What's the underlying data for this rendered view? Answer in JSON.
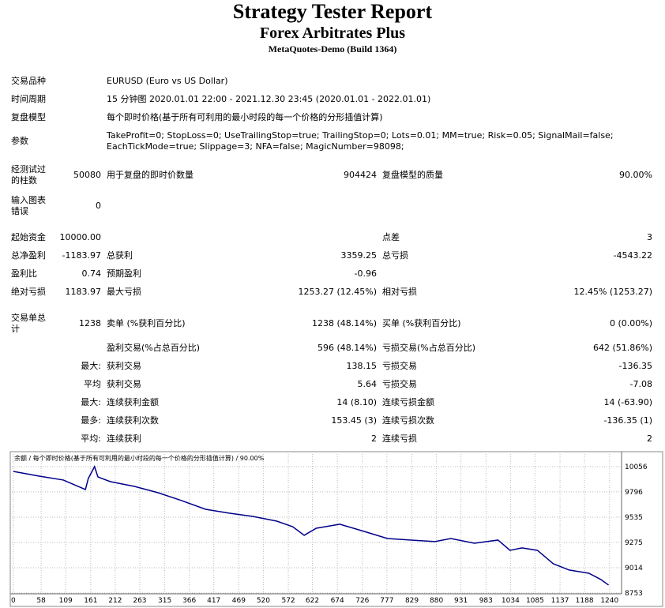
{
  "header": {
    "title": "Strategy Tester Report",
    "subtitle": "Forex Arbitrates Plus",
    "build": "MetaQuotes-Demo (Build 1364)"
  },
  "info": [
    {
      "label": "交易品种",
      "lines": [
        "EURUSD (Euro vs US Dollar)"
      ]
    },
    {
      "label": "时间周期",
      "lines": [
        "15 分钟图 2020.01.01 22:00 - 2021.12.30 23:45 (2020.01.01 - 2022.01.01)"
      ]
    },
    {
      "label": "复盘模型",
      "lines": [
        "每个即时价格(基于所有可利用的最小时段的每一个价格的分形插值计算)"
      ]
    },
    {
      "label": "参数",
      "lines": [
        "TakeProfit=0; StopLoss=0; UseTrailingStop=true; TrailingStop=0; Lots=0.01; MM=true; Risk=0.05; SignalMail=false;",
        "EachTickMode=true; Slippage=3; NFA=false; MagicNumber=98098;"
      ]
    }
  ],
  "stats": [
    [
      "经测试过的柱数",
      "50080",
      "用于复盘的即时价数量",
      "904424",
      "复盘模型的质量",
      "90.00%"
    ],
    [
      "输入图表错误",
      "0",
      null,
      null,
      null,
      null
    ],
    [
      "起始资金",
      "10000.00",
      null,
      null,
      "点差",
      "3"
    ],
    [
      "总净盈利",
      "-1183.97",
      "总获利",
      "3359.25",
      "总亏损",
      "-4543.22"
    ],
    [
      "盈利比",
      "0.74",
      "预期盈利",
      "-0.96",
      null,
      null
    ],
    [
      "绝对亏损",
      "1183.97",
      "最大亏损",
      "1253.27 (12.45%)",
      "相对亏损",
      "12.45% (1253.27)"
    ],
    [
      "交易单总计",
      "1238",
      "卖单 (%获利百分比)",
      "1238 (48.14%)",
      "买单 (%获利百分比)",
      "0 (0.00%)"
    ],
    [
      null,
      null,
      "盈利交易(%占总百分比)",
      "596 (48.14%)",
      "亏损交易(%占总百分比)",
      "642 (51.86%)"
    ],
    [
      null,
      "最大:",
      "获利交易",
      "138.15",
      "亏损交易",
      "-136.35"
    ],
    [
      null,
      "平均",
      "获利交易",
      "5.64",
      "亏损交易",
      "-7.08"
    ],
    [
      null,
      "最大:",
      "连续获利金额",
      "14 (8.10)",
      "连续亏损金额",
      "14 (-63.90)"
    ],
    [
      null,
      "最多:",
      "连续获利次数",
      "153.45 (3)",
      "连续亏损次数",
      "-136.35 (1)"
    ],
    [
      null,
      "平均:",
      "连续获利",
      "2",
      "连续亏损",
      "2"
    ]
  ],
  "chart_data": {
    "type": "line",
    "title": "余额 / 每个即时价格(基于所有可利用的最小时段的每一个价格的分形插值计算) / 90.00%",
    "x": [
      0,
      54,
      104,
      150,
      156,
      169,
      176,
      202,
      252,
      301,
      350,
      400,
      449,
      498,
      548,
      581,
      605,
      630,
      679,
      729,
      778,
      827,
      877,
      910,
      959,
      1008,
      1033,
      1058,
      1090,
      1123,
      1156,
      1197,
      1222,
      1238
    ],
    "values": [
      10007,
      9958,
      9918,
      9820,
      9934,
      10056,
      9950,
      9901,
      9852,
      9787,
      9706,
      9616,
      9576,
      9543,
      9494,
      9437,
      9348,
      9421,
      9462,
      9389,
      9315,
      9299,
      9283,
      9315,
      9266,
      9299,
      9193,
      9218,
      9193,
      9055,
      8990,
      8957,
      8892,
      8835
    ],
    "color": "#00008b",
    "xlim": [
      -3,
      1265
    ],
    "xticks": [
      0,
      58,
      109,
      161,
      212,
      263,
      315,
      366,
      417,
      469,
      520,
      572,
      622,
      674,
      726,
      777,
      829,
      880,
      931,
      983,
      1034,
      1085,
      1137,
      1188,
      1240
    ],
    "ylim": [
      8745,
      10186
    ],
    "yticks": [
      8753,
      9014,
      9275,
      9535,
      9796,
      10056
    ],
    "grid": true
  }
}
